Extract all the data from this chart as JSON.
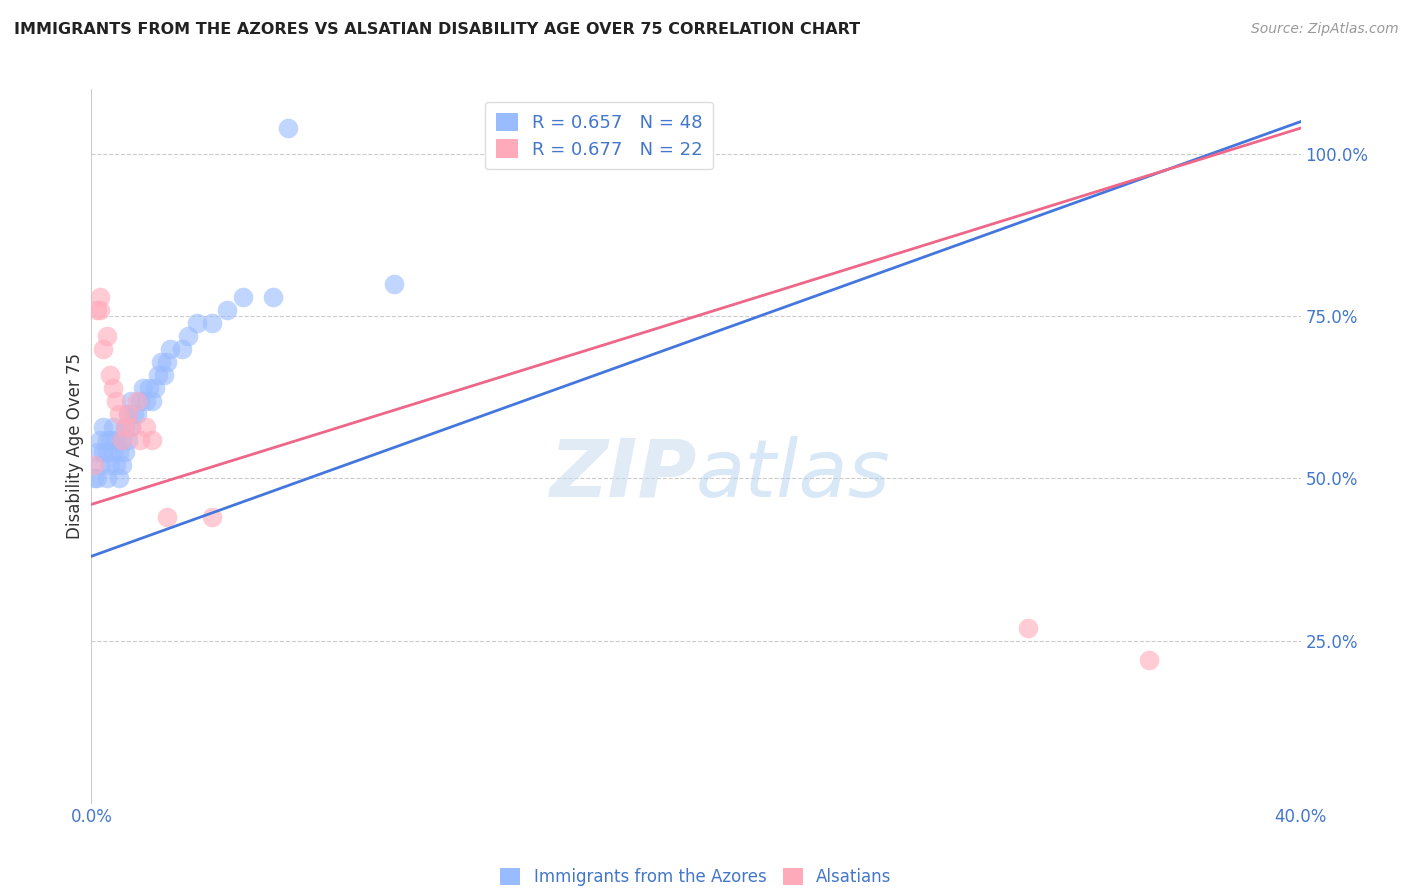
{
  "title": "IMMIGRANTS FROM THE AZORES VS ALSATIAN DISABILITY AGE OVER 75 CORRELATION CHART",
  "source": "Source: ZipAtlas.com",
  "ylabel": "Disability Age Over 75",
  "xlim": [
    0.0,
    0.4
  ],
  "ylim": [
    0.0,
    1.1
  ],
  "legend_label_blue": "R = 0.657   N = 48",
  "legend_label_pink": "R = 0.677   N = 22",
  "legend_bottom_blue": "Immigrants from the Azores",
  "legend_bottom_pink": "Alsatians",
  "blue_color": "#99BBFF",
  "pink_color": "#FFAABB",
  "blue_line_color": "#4477DD",
  "pink_line_color": "#EE6688",
  "blue_points_x": [
    0.001,
    0.002,
    0.002,
    0.003,
    0.003,
    0.004,
    0.004,
    0.005,
    0.005,
    0.005,
    0.006,
    0.006,
    0.007,
    0.007,
    0.008,
    0.008,
    0.009,
    0.009,
    0.01,
    0.01,
    0.011,
    0.011,
    0.012,
    0.012,
    0.013,
    0.013,
    0.014,
    0.015,
    0.016,
    0.017,
    0.018,
    0.019,
    0.02,
    0.021,
    0.022,
    0.023,
    0.024,
    0.025,
    0.026,
    0.03,
    0.032,
    0.035,
    0.04,
    0.045,
    0.05,
    0.06,
    0.065,
    0.1
  ],
  "blue_points_y": [
    0.5,
    0.5,
    0.54,
    0.52,
    0.56,
    0.54,
    0.58,
    0.5,
    0.54,
    0.56,
    0.52,
    0.56,
    0.54,
    0.58,
    0.52,
    0.56,
    0.5,
    0.54,
    0.52,
    0.56,
    0.54,
    0.58,
    0.56,
    0.6,
    0.58,
    0.62,
    0.6,
    0.6,
    0.62,
    0.64,
    0.62,
    0.64,
    0.62,
    0.64,
    0.66,
    0.68,
    0.66,
    0.68,
    0.7,
    0.7,
    0.72,
    0.74,
    0.74,
    0.76,
    0.78,
    0.78,
    1.04,
    0.8
  ],
  "pink_points_x": [
    0.001,
    0.002,
    0.003,
    0.003,
    0.004,
    0.005,
    0.006,
    0.007,
    0.008,
    0.009,
    0.01,
    0.011,
    0.012,
    0.013,
    0.015,
    0.016,
    0.018,
    0.02,
    0.025,
    0.04,
    0.31,
    0.35
  ],
  "pink_points_y": [
    0.52,
    0.76,
    0.76,
    0.78,
    0.7,
    0.72,
    0.66,
    0.64,
    0.62,
    0.6,
    0.56,
    0.58,
    0.6,
    0.58,
    0.62,
    0.56,
    0.58,
    0.56,
    0.44,
    0.44,
    0.27,
    0.22
  ],
  "blue_trendline_x": [
    0.0,
    0.4
  ],
  "blue_trendline_y": [
    0.38,
    1.05
  ],
  "pink_trendline_x": [
    0.0,
    0.4
  ],
  "pink_trendline_y": [
    0.46,
    1.04
  ]
}
